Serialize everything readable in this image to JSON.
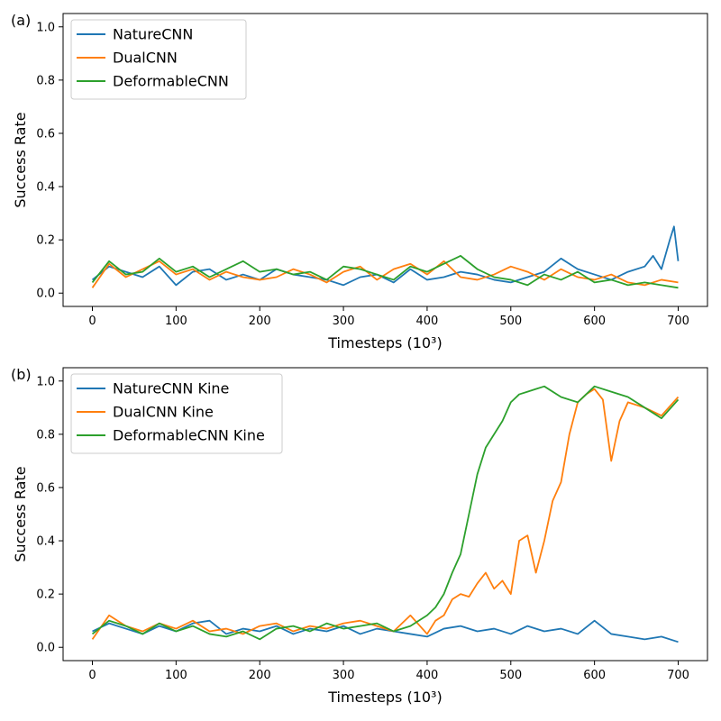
{
  "chart_data": [
    {
      "type": "line",
      "panel_label": "(a)",
      "xlabel": "Timesteps (10³)",
      "ylabel": "Success Rate",
      "xlim": [
        -35,
        735
      ],
      "ylim": [
        -0.05,
        1.05
      ],
      "xticks": [
        0,
        100,
        200,
        300,
        400,
        500,
        600,
        700
      ],
      "yticks": [
        0.0,
        0.2,
        0.4,
        0.6,
        0.8,
        1.0
      ],
      "legend_position": "upper-left",
      "series": [
        {
          "name": "NatureCNN",
          "color": "#1f77b4",
          "x": [
            0,
            20,
            40,
            60,
            80,
            100,
            120,
            140,
            160,
            180,
            200,
            220,
            240,
            260,
            280,
            300,
            320,
            340,
            360,
            380,
            400,
            420,
            440,
            460,
            480,
            500,
            520,
            540,
            560,
            580,
            600,
            620,
            640,
            660,
            670,
            680,
            690,
            695,
            700
          ],
          "y": [
            0.05,
            0.1,
            0.08,
            0.06,
            0.1,
            0.03,
            0.08,
            0.09,
            0.05,
            0.07,
            0.05,
            0.09,
            0.07,
            0.06,
            0.05,
            0.03,
            0.06,
            0.07,
            0.04,
            0.09,
            0.05,
            0.06,
            0.08,
            0.07,
            0.05,
            0.04,
            0.06,
            0.08,
            0.13,
            0.09,
            0.07,
            0.05,
            0.08,
            0.1,
            0.14,
            0.09,
            0.2,
            0.25,
            0.12
          ]
        },
        {
          "name": "DualCNN",
          "color": "#ff7f0e",
          "x": [
            0,
            20,
            40,
            60,
            80,
            100,
            120,
            140,
            160,
            180,
            200,
            220,
            240,
            260,
            280,
            300,
            320,
            340,
            360,
            380,
            400,
            420,
            440,
            460,
            480,
            500,
            520,
            540,
            560,
            580,
            600,
            620,
            640,
            660,
            680,
            700
          ],
          "y": [
            0.02,
            0.11,
            0.06,
            0.09,
            0.12,
            0.07,
            0.09,
            0.05,
            0.08,
            0.06,
            0.05,
            0.06,
            0.09,
            0.07,
            0.04,
            0.08,
            0.1,
            0.05,
            0.09,
            0.11,
            0.07,
            0.12,
            0.06,
            0.05,
            0.07,
            0.1,
            0.08,
            0.05,
            0.09,
            0.06,
            0.05,
            0.07,
            0.04,
            0.03,
            0.05,
            0.04
          ]
        },
        {
          "name": "DeformableCNN",
          "color": "#2ca02c",
          "x": [
            0,
            20,
            40,
            60,
            80,
            100,
            120,
            140,
            160,
            180,
            200,
            220,
            240,
            260,
            280,
            300,
            320,
            340,
            360,
            380,
            400,
            420,
            440,
            460,
            480,
            500,
            520,
            540,
            560,
            580,
            600,
            620,
            640,
            660,
            680,
            700
          ],
          "y": [
            0.04,
            0.12,
            0.07,
            0.08,
            0.13,
            0.08,
            0.1,
            0.06,
            0.09,
            0.12,
            0.08,
            0.09,
            0.07,
            0.08,
            0.05,
            0.1,
            0.09,
            0.07,
            0.05,
            0.1,
            0.08,
            0.11,
            0.14,
            0.09,
            0.06,
            0.05,
            0.03,
            0.07,
            0.05,
            0.08,
            0.04,
            0.05,
            0.03,
            0.04,
            0.03,
            0.02
          ]
        }
      ]
    },
    {
      "type": "line",
      "panel_label": "(b)",
      "xlabel": "Timesteps (10³)",
      "ylabel": "Success Rate",
      "xlim": [
        -35,
        735
      ],
      "ylim": [
        -0.05,
        1.05
      ],
      "xticks": [
        0,
        100,
        200,
        300,
        400,
        500,
        600,
        700
      ],
      "yticks": [
        0.0,
        0.2,
        0.4,
        0.6,
        0.8,
        1.0
      ],
      "legend_position": "upper-left",
      "series": [
        {
          "name": "NatureCNN Kine",
          "color": "#1f77b4",
          "x": [
            0,
            20,
            40,
            60,
            80,
            100,
            120,
            140,
            160,
            180,
            200,
            220,
            240,
            260,
            280,
            300,
            320,
            340,
            360,
            380,
            400,
            420,
            440,
            460,
            480,
            500,
            520,
            540,
            560,
            580,
            600,
            620,
            640,
            660,
            680,
            700
          ],
          "y": [
            0.06,
            0.09,
            0.07,
            0.05,
            0.08,
            0.06,
            0.09,
            0.1,
            0.05,
            0.07,
            0.06,
            0.08,
            0.05,
            0.07,
            0.06,
            0.08,
            0.05,
            0.07,
            0.06,
            0.05,
            0.04,
            0.07,
            0.08,
            0.06,
            0.07,
            0.05,
            0.08,
            0.06,
            0.07,
            0.05,
            0.1,
            0.05,
            0.04,
            0.03,
            0.04,
            0.02
          ]
        },
        {
          "name": "DualCNN Kine",
          "color": "#ff7f0e",
          "x": [
            0,
            20,
            40,
            60,
            80,
            100,
            120,
            140,
            160,
            180,
            200,
            220,
            240,
            260,
            280,
            300,
            320,
            340,
            360,
            380,
            400,
            410,
            420,
            430,
            440,
            450,
            460,
            470,
            480,
            490,
            500,
            510,
            520,
            530,
            540,
            550,
            560,
            570,
            580,
            590,
            600,
            610,
            620,
            630,
            640,
            660,
            680,
            700
          ],
          "y": [
            0.03,
            0.12,
            0.08,
            0.06,
            0.09,
            0.07,
            0.1,
            0.06,
            0.07,
            0.05,
            0.08,
            0.09,
            0.06,
            0.08,
            0.07,
            0.09,
            0.1,
            0.08,
            0.06,
            0.12,
            0.05,
            0.1,
            0.12,
            0.18,
            0.2,
            0.19,
            0.24,
            0.28,
            0.22,
            0.25,
            0.2,
            0.4,
            0.42,
            0.28,
            0.4,
            0.55,
            0.62,
            0.8,
            0.92,
            0.95,
            0.97,
            0.93,
            0.7,
            0.85,
            0.92,
            0.9,
            0.87,
            0.94
          ]
        },
        {
          "name": "DeformableCNN Kine",
          "color": "#2ca02c",
          "x": [
            0,
            20,
            40,
            60,
            80,
            100,
            120,
            140,
            160,
            180,
            200,
            220,
            240,
            260,
            280,
            300,
            320,
            340,
            360,
            380,
            400,
            410,
            420,
            430,
            440,
            450,
            460,
            470,
            480,
            490,
            500,
            510,
            520,
            530,
            540,
            560,
            580,
            600,
            620,
            640,
            660,
            680,
            700
          ],
          "y": [
            0.05,
            0.1,
            0.08,
            0.05,
            0.09,
            0.06,
            0.08,
            0.05,
            0.04,
            0.06,
            0.03,
            0.07,
            0.08,
            0.06,
            0.09,
            0.07,
            0.08,
            0.09,
            0.06,
            0.08,
            0.12,
            0.15,
            0.2,
            0.28,
            0.35,
            0.5,
            0.65,
            0.75,
            0.8,
            0.85,
            0.92,
            0.95,
            0.96,
            0.97,
            0.98,
            0.94,
            0.92,
            0.98,
            0.96,
            0.94,
            0.9,
            0.86,
            0.93
          ]
        }
      ]
    }
  ]
}
